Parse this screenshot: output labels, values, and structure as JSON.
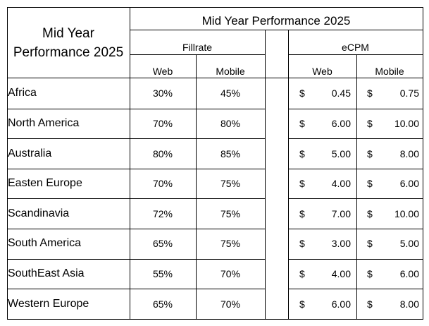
{
  "corner_title": [
    "Mid Year",
    "Performance 2025"
  ],
  "top_header": "Mid Year Performance 2025",
  "groups": {
    "fillrate": "Fillrate",
    "ecpm": "eCPM"
  },
  "columns": {
    "web": "Web",
    "mobile": "Mobile"
  },
  "currency_symbol": "$",
  "rows": [
    {
      "region": "Africa",
      "fill_web": "30%",
      "fill_mobile": "45%",
      "ecpm_web": "0.45",
      "ecpm_mobile": "0.75"
    },
    {
      "region": "North America",
      "fill_web": "70%",
      "fill_mobile": "80%",
      "ecpm_web": "6.00",
      "ecpm_mobile": "10.00"
    },
    {
      "region": "Australia",
      "fill_web": "80%",
      "fill_mobile": "85%",
      "ecpm_web": "5.00",
      "ecpm_mobile": "8.00"
    },
    {
      "region": "Easten Europe",
      "fill_web": "70%",
      "fill_mobile": "75%",
      "ecpm_web": "4.00",
      "ecpm_mobile": "6.00"
    },
    {
      "region": "Scandinavia",
      "fill_web": "72%",
      "fill_mobile": "75%",
      "ecpm_web": "7.00",
      "ecpm_mobile": "10.00"
    },
    {
      "region": "South America",
      "fill_web": "65%",
      "fill_mobile": "75%",
      "ecpm_web": "3.00",
      "ecpm_mobile": "5.00"
    },
    {
      "region": "SouthEast Asia",
      "fill_web": "55%",
      "fill_mobile": "70%",
      "ecpm_web": "4.00",
      "ecpm_mobile": "6.00"
    },
    {
      "region": "Western Europe",
      "fill_web": "65%",
      "fill_mobile": "70%",
      "ecpm_web": "6.00",
      "ecpm_mobile": "8.00"
    }
  ]
}
